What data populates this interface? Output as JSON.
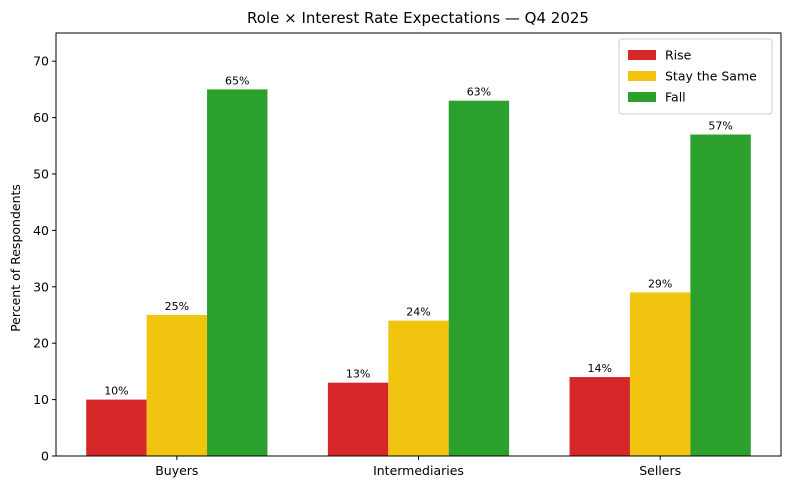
{
  "chart_data": {
    "type": "bar",
    "title": "Role × Interest Rate Expectations — Q4 2025",
    "xlabel": "",
    "ylabel": "Percent of Respondents",
    "ylim": [
      0,
      75
    ],
    "yticks": [
      0,
      10,
      20,
      30,
      40,
      50,
      60,
      70
    ],
    "categories": [
      "Buyers",
      "Intermediaries",
      "Sellers"
    ],
    "series": [
      {
        "name": "Rise",
        "color": "#d62728",
        "values": [
          10,
          13,
          14
        ],
        "labels": [
          "10%",
          "13%",
          "14%"
        ]
      },
      {
        "name": "Stay the Same",
        "color": "#f1c40f",
        "values": [
          25,
          24,
          29
        ],
        "labels": [
          "25%",
          "24%",
          "29%"
        ]
      },
      {
        "name": "Fall",
        "color": "#2ca02c",
        "values": [
          65,
          63,
          57
        ],
        "labels": [
          "65%",
          "63%",
          "57%"
        ]
      }
    ],
    "grid": false,
    "legend_position": "top-right"
  }
}
